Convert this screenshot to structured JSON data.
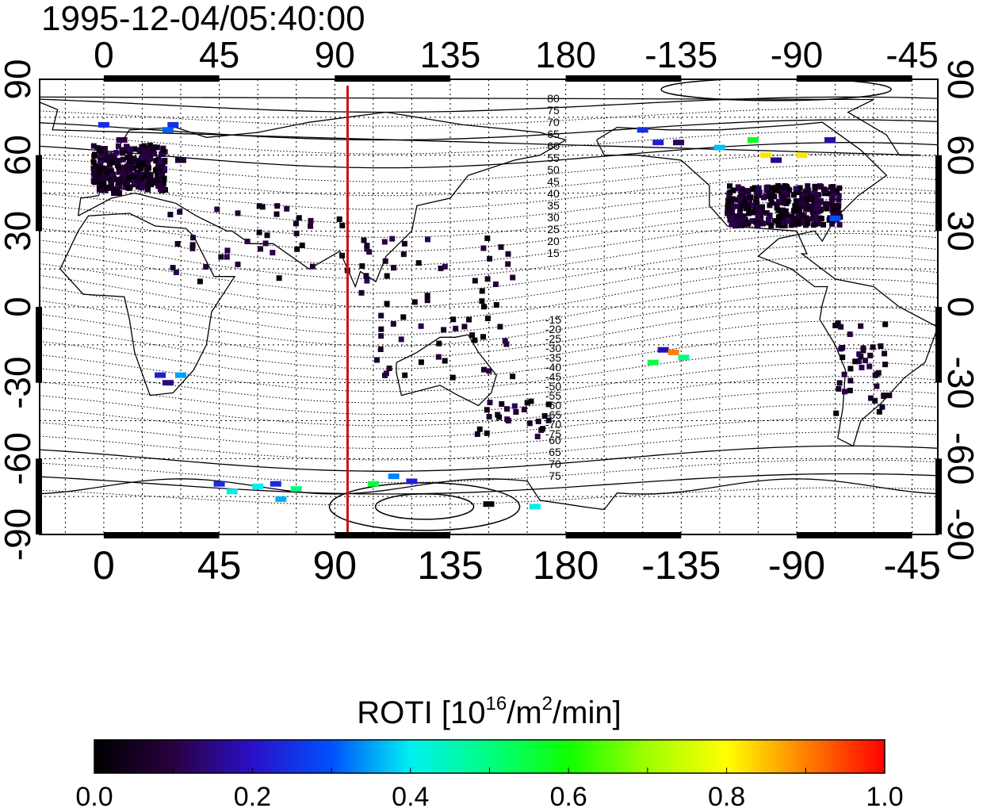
{
  "title": "1995-12-04/05:40:00",
  "map": {
    "top_lon_labels": [
      "0",
      "45",
      "90",
      "135",
      "180",
      "-135",
      "-90",
      "-45"
    ],
    "bottom_lon_labels": [
      "0",
      "45",
      "90",
      "135",
      "180",
      "-135",
      "-90",
      "-45"
    ],
    "left_lat_labels": [
      "90",
      "60",
      "30",
      "0",
      "-30",
      "-60",
      "-90"
    ],
    "right_lat_labels": [
      "90",
      "60",
      "30",
      "0",
      "-30",
      "-60",
      "-90"
    ],
    "contour_labels_north": [
      "80",
      "75",
      "70",
      "65",
      "60",
      "55",
      "50",
      "45",
      "40",
      "35",
      "30",
      "25",
      "20",
      "15"
    ],
    "contour_labels_south": [
      "-15",
      "-20",
      "-25",
      "-30",
      "-35",
      "-40",
      "-45",
      "-50",
      "-55",
      "-60",
      "-65",
      "-70",
      "-75"
    ],
    "south_labels_alt": [
      "60",
      "65",
      "70",
      "75"
    ],
    "terminator_color": "#cc1111",
    "terminator_lon": 95
  },
  "colorbar": {
    "title_prefix": "ROTI  [10",
    "title_sup1": "16",
    "title_mid": "/m",
    "title_sup2": "2",
    "title_suffix": "/min]",
    "tick_labels": [
      "0.0",
      "0.2",
      "0.4",
      "0.6",
      "0.8",
      "1.0"
    ],
    "range": [
      0.0,
      1.0
    ]
  },
  "chart_data": {
    "type": "heatmap",
    "title": "1995-12-04/05:40:00",
    "xlim": [
      -25,
      325
    ],
    "ylim": [
      -90,
      90
    ],
    "colorbar_label": "ROTI [10^16/m^2/min]",
    "colorbar_range": [
      0.0,
      1.0
    ],
    "points": [
      {
        "lon": 0,
        "lat": 72,
        "v": 0.24
      },
      {
        "lon": 27,
        "lat": 72,
        "v": 0.25
      },
      {
        "lon": 25,
        "lat": 70,
        "v": 0.31
      },
      {
        "lon": 7,
        "lat": 66,
        "v": 0.1
      },
      {
        "lon": 15,
        "lat": 62,
        "v": 0.08
      },
      {
        "lon": 10,
        "lat": 55,
        "v": 0.06
      },
      {
        "lon": 20,
        "lat": 50,
        "v": 0.04
      },
      {
        "lon": 5,
        "lat": 45,
        "v": 0.05
      },
      {
        "lon": 30,
        "lat": 58,
        "v": 0.07
      },
      {
        "lon": 22,
        "lat": -27,
        "v": 0.22
      },
      {
        "lon": 30,
        "lat": -27,
        "v": 0.35
      },
      {
        "lon": 25,
        "lat": -30,
        "v": 0.15
      },
      {
        "lon": 45,
        "lat": -70,
        "v": 0.24
      },
      {
        "lon": 50,
        "lat": -73,
        "v": 0.4
      },
      {
        "lon": 60,
        "lat": -71,
        "v": 0.4
      },
      {
        "lon": 67,
        "lat": -70,
        "v": 0.24
      },
      {
        "lon": 75,
        "lat": -72,
        "v": 0.5
      },
      {
        "lon": 69,
        "lat": -76,
        "v": 0.36
      },
      {
        "lon": 105,
        "lat": -70,
        "v": 0.55
      },
      {
        "lon": 113,
        "lat": -67,
        "v": 0.33
      },
      {
        "lon": 120,
        "lat": -69,
        "v": 0.22
      },
      {
        "lon": 168,
        "lat": -79,
        "v": 0.4
      },
      {
        "lon": 150,
        "lat": -78,
        "v": 0.02
      },
      {
        "lon": 210,
        "lat": 70,
        "v": 0.25
      },
      {
        "lon": 216,
        "lat": 65,
        "v": 0.22
      },
      {
        "lon": 224,
        "lat": 65,
        "v": 0.12
      },
      {
        "lon": 240,
        "lat": 63,
        "v": 0.37
      },
      {
        "lon": 253,
        "lat": 66,
        "v": 0.58
      },
      {
        "lon": 258,
        "lat": 60,
        "v": 0.82
      },
      {
        "lon": 272,
        "lat": 60,
        "v": 0.82
      },
      {
        "lon": 262,
        "lat": 58,
        "v": 0.15
      },
      {
        "lon": 283,
        "lat": 66,
        "v": 0.18
      },
      {
        "lon": 218,
        "lat": -17,
        "v": 0.18
      },
      {
        "lon": 222,
        "lat": -18,
        "v": 0.9
      },
      {
        "lon": 214,
        "lat": -22,
        "v": 0.55
      },
      {
        "lon": 226,
        "lat": -20,
        "v": 0.5
      },
      {
        "lon": 250,
        "lat": 40,
        "v": 0.03
      },
      {
        "lon": 270,
        "lat": 38,
        "v": 0.02
      },
      {
        "lon": 285,
        "lat": 40,
        "v": 0.05
      },
      {
        "lon": 285,
        "lat": 35,
        "v": 0.3
      },
      {
        "lon": 305,
        "lat": -35,
        "v": 0.05
      }
    ]
  }
}
